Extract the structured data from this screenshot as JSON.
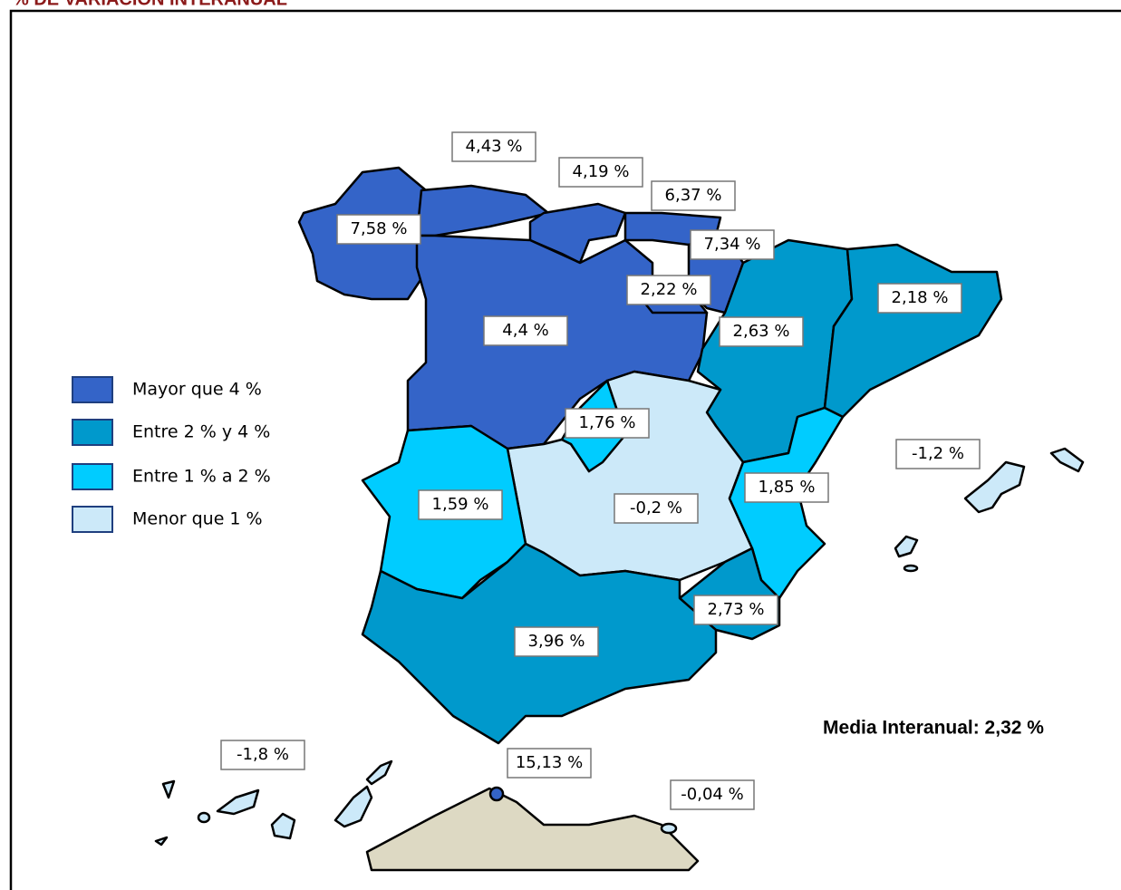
{
  "title": "% DE VARIACIÓN INTERANUAL",
  "legend": [
    {
      "label": "Mayor que 4 %",
      "color": "#3464c8"
    },
    {
      "label": "Entre 2 % y 4 %",
      "color": "#0099cc"
    },
    {
      "label": "Entre 1 % a 2 %",
      "color": "#00ccff"
    },
    {
      "label": "Menor que 1 %",
      "color": "#cce9f9"
    }
  ],
  "regions": [
    {
      "label": "4,43 %"
    },
    {
      "label": "4,19 %"
    },
    {
      "label": "6,37 %"
    },
    {
      "label": "7,58 %"
    },
    {
      "label": "7,34 %"
    },
    {
      "label": "2,22 %"
    },
    {
      "label": "2,18 %"
    },
    {
      "label": "4,4 %"
    },
    {
      "label": "2,63 %"
    },
    {
      "label": "1,76 %"
    },
    {
      "label": "-1,2 %"
    },
    {
      "label": "1,85 %"
    },
    {
      "label": "1,59 %"
    },
    {
      "label": "-0,2 %"
    },
    {
      "label": "2,73 %"
    },
    {
      "label": "3,96 %"
    },
    {
      "label": "-1,8 %"
    },
    {
      "label": "15,13 %"
    },
    {
      "label": "-0,04 %"
    }
  ],
  "note": "Media Interanual: 2,32 %"
}
